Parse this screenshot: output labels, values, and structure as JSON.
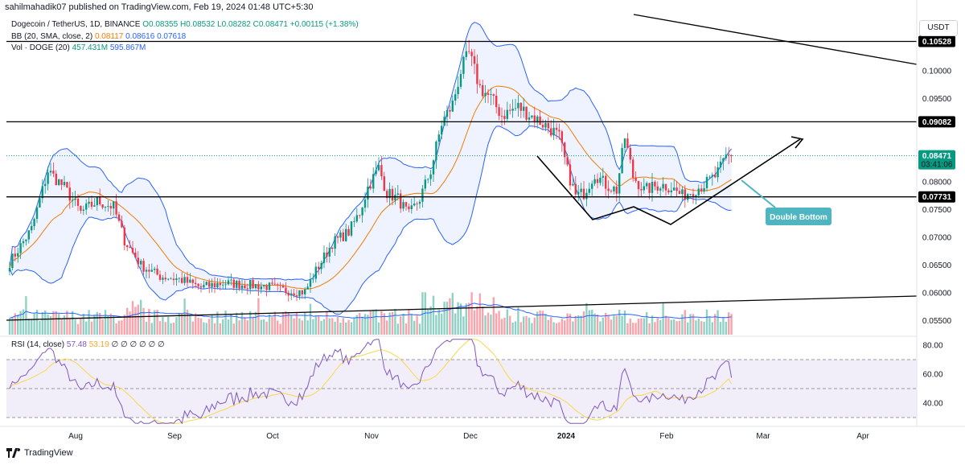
{
  "header": {
    "text": "sahilmahadik07 published on TradingView.com, Feb 19, 2024 01:48 UTC+5:30"
  },
  "legend": {
    "main": {
      "name": "Dogecoin / TetherUS, 1D, BINANCE",
      "o": "O0.08355",
      "h": "H0.08532",
      "l": "L0.08282",
      "c": "C0.08471",
      "chg": "+0.00115 (+1.38%)"
    },
    "bb": {
      "name": "BB (20, SMA, close, 2)",
      "v1": "0.08117",
      "v2": "0.08616",
      "v3": "0.07618"
    },
    "vol": {
      "name": "Vol · DOGE (20)",
      "v1": "457.431M",
      "v2": "595.867M"
    },
    "rsi": {
      "name": "RSI (14, close)",
      "v1": "57.48",
      "v2": "53.19",
      "rest": "∅ ∅ ∅ ∅ ∅ ∅"
    }
  },
  "currency_button": "USDT",
  "footer": {
    "brand": "TradingView"
  },
  "colors": {
    "up": "#089981",
    "down": "#f23645",
    "bb_fill": "#2962ff",
    "bb_mid": "#f57c00",
    "rsi": "#7e57c2",
    "rsi_ma": "#f9d74c",
    "current_tag": "#089981",
    "annotation": "#4db6c1"
  },
  "annotation": {
    "text": "Double Bottom"
  },
  "current_tag": {
    "price": "0.08471",
    "countdown": "03:41:06"
  },
  "chart_data": [
    {
      "type": "candlestick",
      "title": "Dogecoin / TetherUS, 1D, BINANCE",
      "y_ticks": [
        "0.10000",
        "0.09500",
        "0.08000",
        "0.07500",
        "0.07000",
        "0.06500",
        "0.06000",
        "0.05500"
      ],
      "y_tick_values": [
        0.1,
        0.095,
        0.08,
        0.075,
        0.07,
        0.065,
        0.06,
        0.055
      ],
      "x_ticks": [
        "Aug",
        "Sep",
        "Oct",
        "Nov",
        "Dec",
        "2024",
        "Feb",
        "Mar",
        "Apr"
      ],
      "ylim": [
        0.0525,
        0.111
      ],
      "horizontal_levels": [
        {
          "label": "0.10528",
          "value": 0.10528
        },
        {
          "label": "0.09082",
          "value": 0.09082
        },
        {
          "label": "0.07731",
          "value": 0.07731
        }
      ],
      "current_price": 0.08471,
      "series_close_anchors": [
        [
          0,
          0.0655
        ],
        [
          8,
          0.0715
        ],
        [
          14,
          0.082
        ],
        [
          20,
          0.079
        ],
        [
          26,
          0.0745
        ],
        [
          32,
          0.0765
        ],
        [
          38,
          0.0755
        ],
        [
          42,
          0.0695
        ],
        [
          48,
          0.065
        ],
        [
          55,
          0.063
        ],
        [
          62,
          0.0625
        ],
        [
          70,
          0.061
        ],
        [
          78,
          0.0618
        ],
        [
          86,
          0.0615
        ],
        [
          94,
          0.0612
        ],
        [
          100,
          0.0605
        ],
        [
          108,
          0.0602
        ],
        [
          112,
          0.064
        ],
        [
          118,
          0.069
        ],
        [
          124,
          0.071
        ],
        [
          128,
          0.0745
        ],
        [
          131,
          0.079
        ],
        [
          135,
          0.0825
        ],
        [
          138,
          0.078
        ],
        [
          142,
          0.077
        ],
        [
          146,
          0.074
        ],
        [
          150,
          0.077
        ],
        [
          154,
          0.082
        ],
        [
          158,
          0.0905
        ],
        [
          162,
          0.094
        ],
        [
          165,
          0.1
        ],
        [
          168,
          0.103
        ],
        [
          172,
          0.097
        ],
        [
          176,
          0.095
        ],
        [
          180,
          0.092
        ],
        [
          186,
          0.0935
        ],
        [
          192,
          0.0915
        ],
        [
          198,
          0.0895
        ],
        [
          201,
          0.088
        ],
        [
          204,
          0.082
        ],
        [
          207,
          0.0775
        ],
        [
          210,
          0.078
        ],
        [
          214,
          0.0815
        ],
        [
          218,
          0.0795
        ],
        [
          222,
          0.0785
        ],
        [
          225,
          0.088
        ],
        [
          228,
          0.081
        ],
        [
          232,
          0.0785
        ],
        [
          238,
          0.0795
        ],
        [
          242,
          0.079
        ],
        [
          246,
          0.0775
        ],
        [
          250,
          0.0785
        ],
        [
          254,
          0.0795
        ],
        [
          258,
          0.081
        ],
        [
          260,
          0.0825
        ],
        [
          262,
          0.0845
        ],
        [
          264,
          0.0847
        ]
      ],
      "volume_scale_note": "Vol · DOGE (20)",
      "rsi": {
        "y_ticks": [
          "80.00",
          "60.00",
          "40.00"
        ],
        "y_tick_values": [
          80,
          60,
          40
        ],
        "ylim": [
          25,
          85
        ],
        "last": 57.48,
        "ma_last": 53.19
      }
    }
  ]
}
